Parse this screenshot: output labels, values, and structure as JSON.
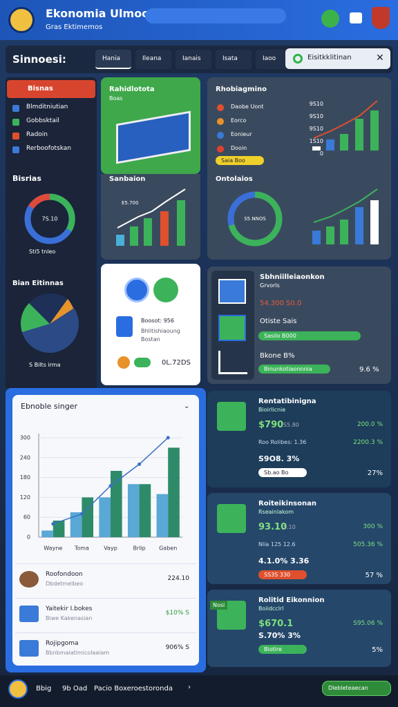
{
  "header": {
    "title": "Ekonomia Ulmoomja",
    "subtitle": "Gras Ektimemos"
  },
  "nav": {
    "brand": "Sinnoesi:",
    "tabs": [
      "Hania",
      "Ileana",
      "Ianais",
      "Isata",
      "Iaoo"
    ],
    "search": "Eisitkklitinan"
  },
  "sidebar": {
    "menu_title": "Bisnas",
    "items": [
      "Blmditniutian",
      "Gobbsktail",
      "Radoin",
      "Rerboofotskan"
    ],
    "donut_title": "Bisrias",
    "donut_center": "7S.10",
    "donut_caption": "Sti5 tnleo",
    "pie_title": "Bian Eitinnas",
    "pie_caption": "S Bilts irma"
  },
  "card_a": {
    "title": "Rahidlotota",
    "sub": "Boas",
    "title2": "Sanbaion",
    "chart_label": "E5.700"
  },
  "card_b": {
    "title": "Rhobiagmino",
    "legend": [
      "Daobe Uont",
      "Eorco",
      "Eonieur",
      "Dooin"
    ],
    "badge": "Saia Boo",
    "ticks": [
      "9S10",
      "9S10",
      "9S10",
      "1S10",
      "0"
    ],
    "title2": "Ontolaios",
    "center": "S5.NNOS"
  },
  "card_c": {
    "price": "Boosot: 956",
    "lines": [
      "Bhlitishiaoung",
      "Bostan"
    ],
    "total": "0L.72DS"
  },
  "card_d": {
    "title": "Sbhniilleiaonkon",
    "sub": "Grvorls",
    "amount": "54.300 S0.0",
    "label": "Otiste Sais",
    "bar1": "Sasilo B000",
    "label2": "Bkone B%",
    "bar2": "Binunkotiaonnnia",
    "pct": "9.6 %"
  },
  "chart_data": {
    "type": "bar",
    "title": "Ebnoble singer",
    "categories": [
      "Wayne",
      "Toma",
      "Vayp",
      "Brlip",
      "Gaben"
    ],
    "series": [
      {
        "color": "#5aa8d6",
        "values": [
          20,
          75,
          120,
          160,
          130
        ]
      },
      {
        "color": "#2e8b6a",
        "values": [
          50,
          120,
          200,
          160,
          270
        ]
      }
    ],
    "line": {
      "color": "#3a6fc4",
      "values": [
        40,
        70,
        155,
        220,
        300
      ]
    },
    "ylim": [
      0,
      300
    ],
    "yticks": [
      0,
      60,
      120,
      180,
      240,
      300
    ],
    "grid": true
  },
  "list": [
    {
      "title": "Roofondoon",
      "sub": "Dbdetmelbeo",
      "value": "224.10"
    },
    {
      "title": "Yaitekir I.bokes",
      "sub": "Biwe Kakenasian",
      "value": "$10% S"
    },
    {
      "title": "Rojipgoma",
      "sub": "Bbnbmaiatimicolaaiam",
      "value": "906% S"
    }
  ],
  "right": [
    {
      "title": "Rentatibinigna",
      "sub": "Bioirlicnie",
      "a": "$790",
      "a2": "S5.80",
      "b": "200.0 %",
      "c": "Roo Rolibes: 1.36",
      "c2": "2200.3 %",
      "d": "S9O8. 3%",
      "pill": "Sb.ao Bo",
      "e": "27%"
    },
    {
      "title": "Roiteikinsonan",
      "sub": "Rseainlakom",
      "a": "93.10",
      "a2": "S.10",
      "b": "300 %",
      "c": "Nlia 125 12.6",
      "c2": "505.36 %",
      "d": "4.1.0% 3.36",
      "pill": "SS3S 330",
      "e": "57 %"
    },
    {
      "title": "Rolitid Eikonnion",
      "sub": "Boiidcclrl",
      "a": "$670.1",
      "a2": "Nosi",
      "b": "S95.06 %",
      "c": "",
      "c2": "",
      "d": "S.70% 3%",
      "pill": "Biotire",
      "e": "5%"
    }
  ],
  "footer": {
    "text1": "Bbig",
    "text2": "9b Oad",
    "text3": "Pacio Boxeroestoronda",
    "button": "Dlebleteaecan"
  }
}
